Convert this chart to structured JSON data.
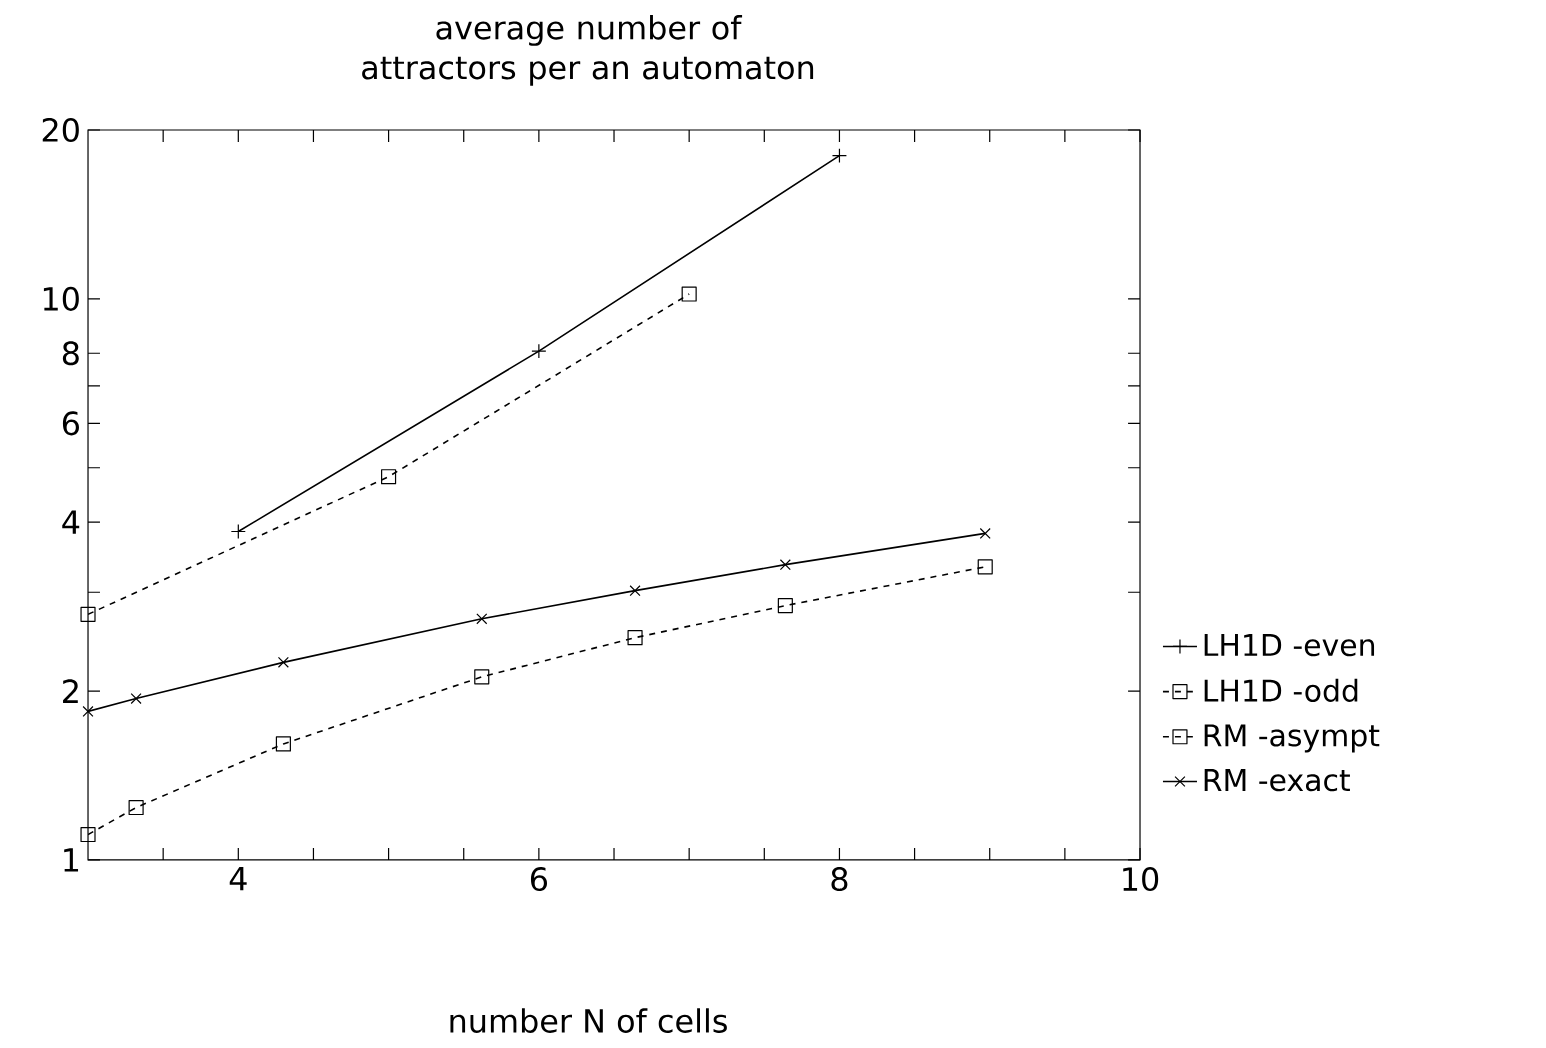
{
  "chart_data": {
    "type": "line",
    "title": "average number of attractors per an automaton",
    "xlabel": "number N of cells",
    "log": "y",
    "xlim": [
      3,
      10
    ],
    "ylim": [
      1,
      20
    ],
    "xticks": [
      {
        "value": 3.5,
        "label": null
      },
      4,
      {
        "value": 4.5,
        "label": null
      },
      {
        "value": 5,
        "label": null
      },
      {
        "value": 5.5,
        "label": null
      },
      6,
      {
        "value": 6.5,
        "label": null
      },
      {
        "value": 7,
        "label": null
      },
      {
        "value": 7.5,
        "label": null
      },
      8,
      {
        "value": 8.5,
        "label": null
      },
      {
        "value": 9,
        "label": null
      },
      {
        "value": 9.5,
        "label": null
      },
      10
    ],
    "yticks": [
      1,
      2,
      {
        "value": 3,
        "label": null
      },
      4,
      {
        "value": 5,
        "label": null
      },
      6,
      {
        "value": 7,
        "label": null
      },
      8,
      10,
      20
    ],
    "legend": "right",
    "grid": false,
    "series": [
      {
        "name": "LH1D -even",
        "color": "#000000",
        "marker": "plus",
        "line_style": "solid",
        "x": [
          4,
          6,
          8
        ],
        "values": [
          3.85,
          8.07,
          18.0
        ]
      },
      {
        "name": "LH1D -odd",
        "color": "#000000",
        "marker": "square",
        "line_style": "dashed",
        "x": [
          3,
          5,
          7
        ],
        "values": [
          2.74,
          4.82,
          10.2
        ]
      },
      {
        "name": "RM -asympt",
        "color": "#000000",
        "marker": "square",
        "line_style": "dashed",
        "x": [
          3,
          3.32,
          4.3,
          5.62,
          6.64,
          7.64,
          8.97
        ],
        "values": [
          1.11,
          1.24,
          1.61,
          2.12,
          2.49,
          2.84,
          3.33
        ]
      },
      {
        "name": "RM -exact",
        "color": "#000000",
        "marker": "cross",
        "line_style": "solid",
        "x": [
          3,
          3.32,
          4.3,
          5.62,
          6.64,
          7.64,
          8.97
        ],
        "values": [
          1.84,
          1.94,
          2.25,
          2.69,
          3.02,
          3.36,
          3.82
        ]
      }
    ]
  }
}
